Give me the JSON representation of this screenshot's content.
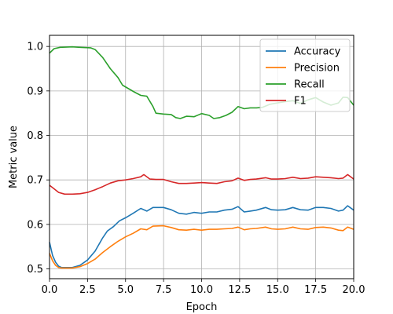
{
  "chart_data": {
    "type": "line",
    "xlabel": "Epoch",
    "ylabel": "Metric value",
    "xlim": [
      0,
      20
    ],
    "ylim": [
      0.478,
      1.025
    ],
    "grid": true,
    "legend_position": "top-right",
    "x_ticks": [
      0,
      2.5,
      5,
      7.5,
      10,
      12.5,
      15,
      17.5,
      20
    ],
    "x_tick_labels": [
      "0.0",
      "2.5",
      "5.0",
      "7.5",
      "10.0",
      "12.5",
      "15.0",
      "17.5",
      "20.0"
    ],
    "y_ticks": [
      0.5,
      0.6,
      0.7,
      0.8,
      0.9,
      1.0
    ],
    "y_tick_labels": [
      "0.5",
      "0.6",
      "0.7",
      "0.8",
      "0.9",
      "1.0"
    ],
    "series": [
      {
        "name": "Accuracy",
        "color": "#1f77b4",
        "points": [
          [
            0,
            0.56
          ],
          [
            0.2,
            0.53
          ],
          [
            0.4,
            0.515
          ],
          [
            0.6,
            0.506
          ],
          [
            0.8,
            0.503
          ],
          [
            1.0,
            0.503
          ],
          [
            1.5,
            0.503
          ],
          [
            2.0,
            0.508
          ],
          [
            2.5,
            0.52
          ],
          [
            3.0,
            0.54
          ],
          [
            3.5,
            0.57
          ],
          [
            3.8,
            0.585
          ],
          [
            4.2,
            0.595
          ],
          [
            4.6,
            0.608
          ],
          [
            5.0,
            0.615
          ],
          [
            5.5,
            0.625
          ],
          [
            6.0,
            0.636
          ],
          [
            6.4,
            0.63
          ],
          [
            6.8,
            0.638
          ],
          [
            7.5,
            0.638
          ],
          [
            8.0,
            0.633
          ],
          [
            8.5,
            0.625
          ],
          [
            9.0,
            0.623
          ],
          [
            9.5,
            0.627
          ],
          [
            10.0,
            0.625
          ],
          [
            10.5,
            0.628
          ],
          [
            11.0,
            0.628
          ],
          [
            11.5,
            0.632
          ],
          [
            12.0,
            0.634
          ],
          [
            12.4,
            0.64
          ],
          [
            12.8,
            0.628
          ],
          [
            13.2,
            0.63
          ],
          [
            13.6,
            0.632
          ],
          [
            14.2,
            0.638
          ],
          [
            14.6,
            0.633
          ],
          [
            15.0,
            0.632
          ],
          [
            15.5,
            0.633
          ],
          [
            16.0,
            0.638
          ],
          [
            16.5,
            0.633
          ],
          [
            17.0,
            0.632
          ],
          [
            17.5,
            0.638
          ],
          [
            18.0,
            0.638
          ],
          [
            18.5,
            0.636
          ],
          [
            19.0,
            0.63
          ],
          [
            19.3,
            0.632
          ],
          [
            19.6,
            0.642
          ],
          [
            20.0,
            0.632
          ]
        ]
      },
      {
        "name": "Precision",
        "color": "#ff7f0e",
        "points": [
          [
            0,
            0.535
          ],
          [
            0.2,
            0.518
          ],
          [
            0.4,
            0.508
          ],
          [
            0.6,
            0.503
          ],
          [
            0.8,
            0.502
          ],
          [
            1.0,
            0.502
          ],
          [
            1.5,
            0.502
          ],
          [
            2.0,
            0.505
          ],
          [
            2.5,
            0.512
          ],
          [
            3.0,
            0.522
          ],
          [
            3.5,
            0.537
          ],
          [
            4.0,
            0.55
          ],
          [
            4.5,
            0.562
          ],
          [
            5.0,
            0.572
          ],
          [
            5.5,
            0.58
          ],
          [
            6.0,
            0.59
          ],
          [
            6.4,
            0.588
          ],
          [
            6.8,
            0.596
          ],
          [
            7.5,
            0.597
          ],
          [
            8.0,
            0.593
          ],
          [
            8.5,
            0.588
          ],
          [
            9.0,
            0.587
          ],
          [
            9.5,
            0.589
          ],
          [
            10.0,
            0.587
          ],
          [
            10.5,
            0.589
          ],
          [
            11.0,
            0.589
          ],
          [
            11.5,
            0.59
          ],
          [
            12.0,
            0.591
          ],
          [
            12.4,
            0.594
          ],
          [
            12.8,
            0.588
          ],
          [
            13.2,
            0.59
          ],
          [
            13.6,
            0.591
          ],
          [
            14.2,
            0.594
          ],
          [
            14.6,
            0.59
          ],
          [
            15.0,
            0.589
          ],
          [
            15.5,
            0.59
          ],
          [
            16.0,
            0.594
          ],
          [
            16.5,
            0.59
          ],
          [
            17.0,
            0.589
          ],
          [
            17.5,
            0.593
          ],
          [
            18.0,
            0.594
          ],
          [
            18.5,
            0.592
          ],
          [
            19.0,
            0.587
          ],
          [
            19.3,
            0.586
          ],
          [
            19.6,
            0.594
          ],
          [
            20.0,
            0.589
          ]
        ]
      },
      {
        "name": "Recall",
        "color": "#2ca02c",
        "points": [
          [
            0,
            0.985
          ],
          [
            0.3,
            0.995
          ],
          [
            0.7,
            0.998
          ],
          [
            1.5,
            0.999
          ],
          [
            2.0,
            0.998
          ],
          [
            2.7,
            0.997
          ],
          [
            3.0,
            0.993
          ],
          [
            3.5,
            0.975
          ],
          [
            4.0,
            0.95
          ],
          [
            4.5,
            0.93
          ],
          [
            4.8,
            0.913
          ],
          [
            5.2,
            0.905
          ],
          [
            5.6,
            0.897
          ],
          [
            6.0,
            0.89
          ],
          [
            6.4,
            0.888
          ],
          [
            6.8,
            0.865
          ],
          [
            7.0,
            0.85
          ],
          [
            7.5,
            0.848
          ],
          [
            8.0,
            0.847
          ],
          [
            8.3,
            0.84
          ],
          [
            8.6,
            0.838
          ],
          [
            9.0,
            0.843
          ],
          [
            9.5,
            0.842
          ],
          [
            10.0,
            0.849
          ],
          [
            10.5,
            0.845
          ],
          [
            10.8,
            0.838
          ],
          [
            11.2,
            0.84
          ],
          [
            11.6,
            0.845
          ],
          [
            12.0,
            0.852
          ],
          [
            12.4,
            0.865
          ],
          [
            12.8,
            0.86
          ],
          [
            13.2,
            0.862
          ],
          [
            13.6,
            0.862
          ],
          [
            14.0,
            0.863
          ],
          [
            14.5,
            0.87
          ],
          [
            15.0,
            0.873
          ],
          [
            15.5,
            0.876
          ],
          [
            16.0,
            0.878
          ],
          [
            16.5,
            0.872
          ],
          [
            17.0,
            0.88
          ],
          [
            17.5,
            0.885
          ],
          [
            18.0,
            0.875
          ],
          [
            18.5,
            0.868
          ],
          [
            19.0,
            0.873
          ],
          [
            19.3,
            0.886
          ],
          [
            19.6,
            0.885
          ],
          [
            20.0,
            0.868
          ]
        ]
      },
      {
        "name": "F1",
        "color": "#d62728",
        "points": [
          [
            0,
            0.688
          ],
          [
            0.3,
            0.68
          ],
          [
            0.6,
            0.672
          ],
          [
            1.0,
            0.668
          ],
          [
            1.5,
            0.668
          ],
          [
            2.0,
            0.669
          ],
          [
            2.5,
            0.672
          ],
          [
            3.0,
            0.678
          ],
          [
            3.5,
            0.685
          ],
          [
            4.0,
            0.693
          ],
          [
            4.5,
            0.698
          ],
          [
            5.0,
            0.7
          ],
          [
            5.5,
            0.703
          ],
          [
            6.0,
            0.707
          ],
          [
            6.2,
            0.712
          ],
          [
            6.6,
            0.702
          ],
          [
            7.0,
            0.701
          ],
          [
            7.5,
            0.701
          ],
          [
            8.0,
            0.696
          ],
          [
            8.5,
            0.692
          ],
          [
            9.0,
            0.692
          ],
          [
            9.5,
            0.693
          ],
          [
            10.0,
            0.694
          ],
          [
            10.5,
            0.693
          ],
          [
            11.0,
            0.692
          ],
          [
            11.5,
            0.696
          ],
          [
            12.0,
            0.698
          ],
          [
            12.4,
            0.704
          ],
          [
            12.8,
            0.699
          ],
          [
            13.2,
            0.701
          ],
          [
            13.6,
            0.702
          ],
          [
            14.2,
            0.705
          ],
          [
            14.6,
            0.702
          ],
          [
            15.0,
            0.702
          ],
          [
            15.5,
            0.703
          ],
          [
            16.0,
            0.706
          ],
          [
            16.5,
            0.703
          ],
          [
            17.0,
            0.704
          ],
          [
            17.5,
            0.707
          ],
          [
            18.0,
            0.706
          ],
          [
            18.5,
            0.705
          ],
          [
            19.0,
            0.703
          ],
          [
            19.3,
            0.704
          ],
          [
            19.6,
            0.712
          ],
          [
            20.0,
            0.702
          ]
        ]
      }
    ]
  }
}
